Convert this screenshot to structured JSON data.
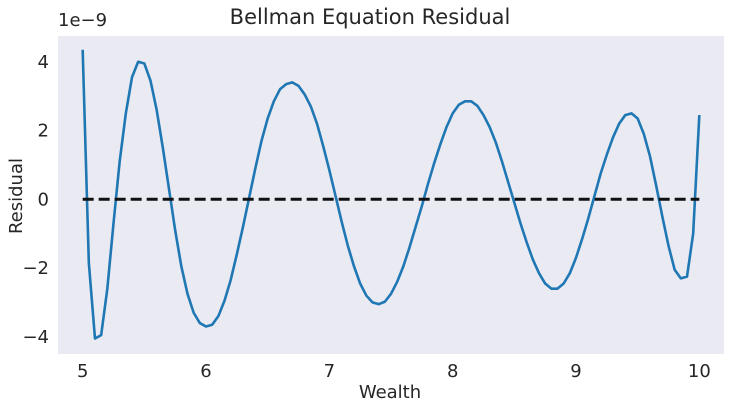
{
  "chart_data": {
    "type": "line",
    "title": "Bellman Equation Residual",
    "xlabel": "Wealth",
    "ylabel": "Residual",
    "offset_text": "1e−9",
    "xlim": [
      4.8,
      10.2
    ],
    "ylim": [
      -4.5,
      4.75
    ],
    "y_scale_factor": 1e-09,
    "xticks": [
      5,
      6,
      7,
      8,
      9,
      10
    ],
    "xtick_labels": [
      "5",
      "6",
      "7",
      "8",
      "9",
      "10"
    ],
    "yticks": [
      -4,
      -2,
      0,
      2,
      4
    ],
    "ytick_labels": [
      "−4",
      "−2",
      "0",
      "2",
      "4"
    ],
    "grid": false,
    "plot_background": "#eaeaf2",
    "series": [
      {
        "color": "#1f77b4",
        "style": "solid",
        "x": [
          5.0,
          5.05,
          5.1,
          5.15,
          5.2,
          5.25,
          5.3,
          5.35,
          5.4,
          5.45,
          5.5,
          5.55,
          5.6,
          5.65,
          5.7,
          5.75,
          5.8,
          5.85,
          5.9,
          5.95,
          6.0,
          6.05,
          6.1,
          6.15,
          6.2,
          6.25,
          6.3,
          6.35,
          6.4,
          6.45,
          6.5,
          6.55,
          6.6,
          6.65,
          6.7,
          6.75,
          6.8,
          6.85,
          6.9,
          6.95,
          7.0,
          7.05,
          7.1,
          7.15,
          7.2,
          7.25,
          7.3,
          7.35,
          7.4,
          7.45,
          7.5,
          7.55,
          7.6,
          7.65,
          7.7,
          7.75,
          7.8,
          7.85,
          7.9,
          7.95,
          8.0,
          8.05,
          8.1,
          8.15,
          8.2,
          8.25,
          8.3,
          8.35,
          8.4,
          8.45,
          8.5,
          8.55,
          8.6,
          8.65,
          8.7,
          8.75,
          8.8,
          8.85,
          8.9,
          8.95,
          9.0,
          9.05,
          9.1,
          9.15,
          9.2,
          9.25,
          9.3,
          9.35,
          9.4,
          9.45,
          9.5,
          9.55,
          9.6,
          9.65,
          9.7,
          9.75,
          9.8,
          9.85,
          9.9,
          9.95,
          10.0
        ],
        "y": [
          4.35,
          -1.85,
          -4.05,
          -3.95,
          -2.6,
          -0.7,
          1.1,
          2.5,
          3.55,
          4.0,
          3.95,
          3.45,
          2.6,
          1.5,
          0.3,
          -0.9,
          -1.95,
          -2.75,
          -3.3,
          -3.6,
          -3.7,
          -3.65,
          -3.4,
          -2.95,
          -2.35,
          -1.6,
          -0.8,
          0.05,
          0.9,
          1.7,
          2.35,
          2.85,
          3.2,
          3.35,
          3.4,
          3.3,
          3.05,
          2.7,
          2.2,
          1.55,
          0.85,
          0.1,
          -0.65,
          -1.35,
          -1.95,
          -2.45,
          -2.8,
          -3.0,
          -3.05,
          -2.98,
          -2.75,
          -2.4,
          -1.95,
          -1.4,
          -0.8,
          -0.2,
          0.45,
          1.05,
          1.6,
          2.1,
          2.5,
          2.75,
          2.85,
          2.85,
          2.72,
          2.45,
          2.1,
          1.65,
          1.1,
          0.5,
          -0.1,
          -0.7,
          -1.25,
          -1.75,
          -2.15,
          -2.45,
          -2.6,
          -2.6,
          -2.45,
          -2.15,
          -1.7,
          -1.15,
          -0.55,
          0.1,
          0.75,
          1.3,
          1.8,
          2.2,
          2.45,
          2.5,
          2.35,
          1.9,
          1.25,
          0.4,
          -0.5,
          -1.35,
          -2.05,
          -2.3,
          -2.25,
          -1.0,
          2.45
        ]
      },
      {
        "color": "#111111",
        "style": "dashed",
        "x": [
          5.0,
          10.0
        ],
        "y": [
          0,
          0
        ]
      }
    ]
  }
}
